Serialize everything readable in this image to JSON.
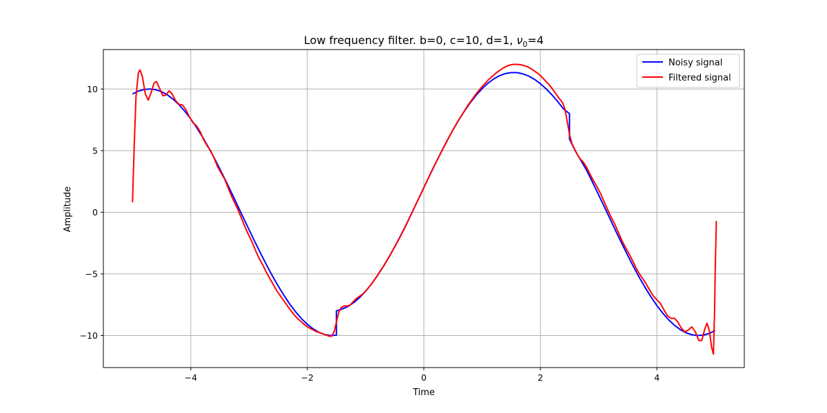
{
  "chart_data": {
    "type": "line",
    "title_main": "Low frequency filter. b=0, c=10, d=1, ",
    "title_nu": "ν",
    "title_sub": "0",
    "title_tail": "=4",
    "xlabel": "Time",
    "ylabel": "Amplitude",
    "xlim": [
      -5.5,
      5.5
    ],
    "ylim": [
      -12.6,
      13.2
    ],
    "xticks": [
      -4,
      -2,
      0,
      2,
      4
    ],
    "yticks": [
      -10,
      -5,
      0,
      5,
      10
    ],
    "xtick_labels": [
      "−4",
      "−2",
      "0",
      "2",
      "4"
    ],
    "ytick_labels": [
      "−10",
      "−5",
      "0",
      "5",
      "10"
    ],
    "grid": true,
    "legend_position": "top-right",
    "noisy_color": "#0000ff",
    "filtered_color": "#ff0000",
    "series": [
      {
        "name": "Noisy signal",
        "color": "#0000ff",
        "points": [
          [
            -5.0,
            9.59
          ],
          [
            -4.9,
            9.83
          ],
          [
            -4.8,
            9.96
          ],
          [
            -4.7,
            10.0
          ],
          [
            -4.6,
            9.94
          ],
          [
            -4.5,
            9.78
          ],
          [
            -4.4,
            9.52
          ],
          [
            -4.3,
            9.16
          ],
          [
            -4.2,
            8.72
          ],
          [
            -4.1,
            8.18
          ],
          [
            -4.0,
            7.57
          ],
          [
            -3.9,
            6.88
          ],
          [
            -3.8,
            6.12
          ],
          [
            -3.7,
            5.3
          ],
          [
            -3.6,
            4.43
          ],
          [
            -3.5,
            3.51
          ],
          [
            -3.4,
            2.55
          ],
          [
            -3.3,
            1.58
          ],
          [
            -3.2,
            0.58
          ],
          [
            -3.1,
            -0.42
          ],
          [
            -3.0,
            -1.41
          ],
          [
            -2.9,
            -2.39
          ],
          [
            -2.8,
            -3.35
          ],
          [
            -2.7,
            -4.27
          ],
          [
            -2.6,
            -5.16
          ],
          [
            -2.5,
            -5.98
          ],
          [
            -2.4,
            -6.75
          ],
          [
            -2.3,
            -7.46
          ],
          [
            -2.2,
            -8.08
          ],
          [
            -2.1,
            -8.63
          ],
          [
            -2.0,
            -9.09
          ],
          [
            -1.9,
            -9.46
          ],
          [
            -1.8,
            -9.74
          ],
          [
            -1.7,
            -9.92
          ],
          [
            -1.6,
            -10.0
          ],
          [
            -1.5,
            -9.97
          ],
          [
            -1.5,
            -8.0
          ],
          [
            -1.4,
            -7.85
          ],
          [
            -1.3,
            -7.64
          ],
          [
            -1.2,
            -7.32
          ],
          [
            -1.1,
            -6.91
          ],
          [
            -1.0,
            -6.41
          ],
          [
            -0.9,
            -5.83
          ],
          [
            -0.8,
            -5.17
          ],
          [
            -0.7,
            -4.44
          ],
          [
            -0.6,
            -3.65
          ],
          [
            -0.5,
            -2.8
          ],
          [
            -0.4,
            -1.91
          ],
          [
            -0.3,
            -0.98
          ],
          [
            -0.2,
            0.01
          ],
          [
            -0.1,
            1.0
          ],
          [
            0.0,
            2.0
          ],
          [
            0.1,
            2.99
          ],
          [
            0.2,
            3.96
          ],
          [
            0.3,
            4.91
          ],
          [
            0.4,
            5.82
          ],
          [
            0.5,
            6.68
          ],
          [
            0.6,
            7.49
          ],
          [
            0.7,
            8.23
          ],
          [
            0.8,
            8.91
          ],
          [
            0.9,
            9.51
          ],
          [
            1.0,
            10.03
          ],
          [
            1.1,
            10.47
          ],
          [
            1.2,
            10.82
          ],
          [
            1.3,
            11.08
          ],
          [
            1.4,
            11.25
          ],
          [
            1.5,
            11.33
          ],
          [
            1.6,
            11.33
          ],
          [
            1.7,
            11.23
          ],
          [
            1.8,
            11.05
          ],
          [
            1.9,
            10.78
          ],
          [
            2.0,
            10.43
          ],
          [
            2.1,
            10.01
          ],
          [
            2.2,
            9.52
          ],
          [
            2.3,
            8.97
          ],
          [
            2.4,
            8.37
          ],
          [
            2.5,
            8.0
          ],
          [
            2.5,
            5.93
          ],
          [
            2.6,
            4.98
          ],
          [
            2.7,
            4.17
          ],
          [
            2.8,
            3.35
          ],
          [
            2.9,
            2.39
          ],
          [
            3.0,
            1.41
          ],
          [
            3.1,
            0.42
          ],
          [
            3.2,
            -0.58
          ],
          [
            3.3,
            -1.58
          ],
          [
            3.4,
            -2.55
          ],
          [
            3.5,
            -3.51
          ],
          [
            3.6,
            -4.43
          ],
          [
            3.7,
            -5.3
          ],
          [
            3.8,
            -6.12
          ],
          [
            3.9,
            -6.88
          ],
          [
            4.0,
            -7.57
          ],
          [
            4.1,
            -8.18
          ],
          [
            4.2,
            -8.72
          ],
          [
            4.3,
            -9.16
          ],
          [
            4.4,
            -9.52
          ],
          [
            4.5,
            -9.78
          ],
          [
            4.6,
            -9.94
          ],
          [
            4.7,
            -10.0
          ],
          [
            4.8,
            -9.96
          ],
          [
            4.9,
            -9.83
          ],
          [
            5.0,
            -9.59
          ]
        ]
      },
      {
        "name": "Filtered signal",
        "color": "#ff0000",
        "points": [
          [
            -5.0,
            0.8
          ],
          [
            -4.97,
            5.5
          ],
          [
            -4.94,
            9.4
          ],
          [
            -4.9,
            11.3
          ],
          [
            -4.87,
            11.55
          ],
          [
            -4.83,
            11.0
          ],
          [
            -4.78,
            9.6
          ],
          [
            -4.73,
            9.1
          ],
          [
            -4.68,
            9.7
          ],
          [
            -4.63,
            10.5
          ],
          [
            -4.59,
            10.6
          ],
          [
            -4.53,
            10.0
          ],
          [
            -4.48,
            9.45
          ],
          [
            -4.43,
            9.5
          ],
          [
            -4.37,
            9.85
          ],
          [
            -4.32,
            9.6
          ],
          [
            -4.26,
            9.05
          ],
          [
            -4.2,
            8.75
          ],
          [
            -4.14,
            8.7
          ],
          [
            -4.08,
            8.3
          ],
          [
            -4.02,
            7.7
          ],
          [
            -3.96,
            7.25
          ],
          [
            -3.9,
            7.0
          ],
          [
            -3.84,
            6.55
          ],
          [
            -3.78,
            5.9
          ],
          [
            -3.72,
            5.4
          ],
          [
            -3.66,
            5.0
          ],
          [
            -3.6,
            4.4
          ],
          [
            -3.54,
            3.7
          ],
          [
            -3.48,
            3.2
          ],
          [
            -3.42,
            2.7
          ],
          [
            -3.36,
            2.0
          ],
          [
            -3.3,
            1.3
          ],
          [
            -3.24,
            0.7
          ],
          [
            -3.18,
            0.1
          ],
          [
            -3.12,
            -0.6
          ],
          [
            -3.06,
            -1.3
          ],
          [
            -3.0,
            -1.9
          ],
          [
            -2.94,
            -2.5
          ],
          [
            -2.88,
            -3.2
          ],
          [
            -2.82,
            -3.8
          ],
          [
            -2.76,
            -4.3
          ],
          [
            -2.7,
            -4.9
          ],
          [
            -2.64,
            -5.4
          ],
          [
            -2.58,
            -5.9
          ],
          [
            -2.52,
            -6.4
          ],
          [
            -2.46,
            -6.8
          ],
          [
            -2.4,
            -7.2
          ],
          [
            -2.34,
            -7.6
          ],
          [
            -2.28,
            -8.0
          ],
          [
            -2.22,
            -8.35
          ],
          [
            -2.16,
            -8.65
          ],
          [
            -2.1,
            -8.9
          ],
          [
            -2.04,
            -9.15
          ],
          [
            -1.98,
            -9.35
          ],
          [
            -1.92,
            -9.5
          ],
          [
            -1.86,
            -9.65
          ],
          [
            -1.8,
            -9.75
          ],
          [
            -1.74,
            -9.85
          ],
          [
            -1.68,
            -9.95
          ],
          [
            -1.63,
            -10.05
          ],
          [
            -1.58,
            -10.05
          ],
          [
            -1.54,
            -9.7
          ],
          [
            -1.5,
            -8.9
          ],
          [
            -1.46,
            -8.1
          ],
          [
            -1.42,
            -7.75
          ],
          [
            -1.37,
            -7.6
          ],
          [
            -1.32,
            -7.6
          ],
          [
            -1.27,
            -7.55
          ],
          [
            -1.22,
            -7.3
          ],
          [
            -1.16,
            -7.0
          ],
          [
            -1.1,
            -6.8
          ],
          [
            -1.04,
            -6.6
          ],
          [
            -0.98,
            -6.3
          ],
          [
            -0.92,
            -5.95
          ],
          [
            -0.86,
            -5.55
          ],
          [
            -0.8,
            -5.15
          ],
          [
            -0.74,
            -4.7
          ],
          [
            -0.68,
            -4.3
          ],
          [
            -0.62,
            -3.8
          ],
          [
            -0.56,
            -3.3
          ],
          [
            -0.5,
            -2.8
          ],
          [
            -0.44,
            -2.3
          ],
          [
            -0.38,
            -1.75
          ],
          [
            -0.32,
            -1.2
          ],
          [
            -0.26,
            -0.6
          ],
          [
            -0.2,
            0.0
          ],
          [
            -0.14,
            0.6
          ],
          [
            -0.08,
            1.2
          ],
          [
            -0.02,
            1.8
          ],
          [
            0.04,
            2.4
          ],
          [
            0.1,
            3.0
          ],
          [
            0.16,
            3.6
          ],
          [
            0.22,
            4.15
          ],
          [
            0.28,
            4.7
          ],
          [
            0.34,
            5.25
          ],
          [
            0.4,
            5.8
          ],
          [
            0.46,
            6.35
          ],
          [
            0.52,
            6.85
          ],
          [
            0.58,
            7.35
          ],
          [
            0.64,
            7.8
          ],
          [
            0.7,
            8.25
          ],
          [
            0.76,
            8.7
          ],
          [
            0.82,
            9.1
          ],
          [
            0.88,
            9.5
          ],
          [
            0.94,
            9.85
          ],
          [
            1.0,
            10.2
          ],
          [
            1.06,
            10.5
          ],
          [
            1.12,
            10.8
          ],
          [
            1.18,
            11.05
          ],
          [
            1.24,
            11.3
          ],
          [
            1.3,
            11.5
          ],
          [
            1.36,
            11.7
          ],
          [
            1.42,
            11.85
          ],
          [
            1.48,
            11.95
          ],
          [
            1.54,
            12.0
          ],
          [
            1.6,
            12.0
          ],
          [
            1.66,
            11.97
          ],
          [
            1.72,
            11.9
          ],
          [
            1.78,
            11.8
          ],
          [
            1.84,
            11.65
          ],
          [
            1.9,
            11.45
          ],
          [
            1.96,
            11.25
          ],
          [
            2.02,
            11.0
          ],
          [
            2.08,
            10.7
          ],
          [
            2.14,
            10.4
          ],
          [
            2.2,
            10.05
          ],
          [
            2.26,
            9.65
          ],
          [
            2.32,
            9.25
          ],
          [
            2.38,
            8.9
          ],
          [
            2.42,
            8.4
          ],
          [
            2.46,
            7.4
          ],
          [
            2.5,
            6.3
          ],
          [
            2.54,
            5.6
          ],
          [
            2.58,
            5.2
          ],
          [
            2.62,
            4.8
          ],
          [
            2.68,
            4.35
          ],
          [
            2.74,
            4.05
          ],
          [
            2.8,
            3.6
          ],
          [
            2.86,
            3.0
          ],
          [
            2.92,
            2.5
          ],
          [
            2.98,
            2.0
          ],
          [
            3.04,
            1.45
          ],
          [
            3.1,
            0.8
          ],
          [
            3.16,
            0.15
          ],
          [
            3.22,
            -0.45
          ],
          [
            3.28,
            -1.0
          ],
          [
            3.34,
            -1.65
          ],
          [
            3.4,
            -2.3
          ],
          [
            3.46,
            -2.85
          ],
          [
            3.52,
            -3.35
          ],
          [
            3.58,
            -3.9
          ],
          [
            3.64,
            -4.5
          ],
          [
            3.7,
            -5.0
          ],
          [
            3.76,
            -5.4
          ],
          [
            3.82,
            -5.85
          ],
          [
            3.88,
            -6.35
          ],
          [
            3.94,
            -6.8
          ],
          [
            4.0,
            -7.1
          ],
          [
            4.06,
            -7.4
          ],
          [
            4.12,
            -7.9
          ],
          [
            4.18,
            -8.4
          ],
          [
            4.24,
            -8.6
          ],
          [
            4.3,
            -8.6
          ],
          [
            4.36,
            -8.9
          ],
          [
            4.42,
            -9.4
          ],
          [
            4.48,
            -9.7
          ],
          [
            4.54,
            -9.55
          ],
          [
            4.6,
            -9.3
          ],
          [
            4.66,
            -9.7
          ],
          [
            4.72,
            -10.4
          ],
          [
            4.77,
            -10.4
          ],
          [
            4.82,
            -9.5
          ],
          [
            4.86,
            -9.0
          ],
          [
            4.9,
            -9.6
          ],
          [
            4.94,
            -11.0
          ],
          [
            4.97,
            -11.5
          ],
          [
            4.99,
            -8.0
          ],
          [
            5.0,
            -5.0
          ],
          [
            5.02,
            -0.7
          ]
        ]
      }
    ]
  }
}
